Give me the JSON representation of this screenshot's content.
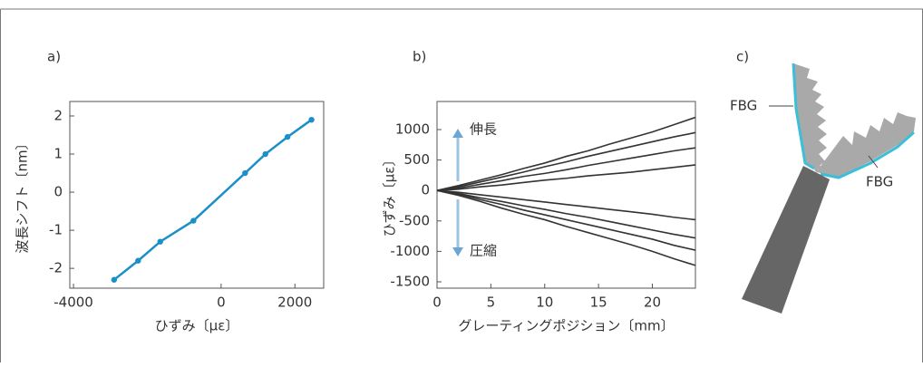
{
  "chart_data": [
    {
      "type": "scatter",
      "title": "a)",
      "xlabel": "ひずみ〔με〕",
      "ylabel": "波長シフト〔nm〕",
      "x": [
        -2900,
        -2250,
        -1650,
        -750,
        650,
        1200,
        1800,
        2450
      ],
      "series": [
        {
          "color": "#1a8fc9",
          "values": [
            -2.3,
            -1.8,
            -1.3,
            -0.75,
            0.5,
            1.0,
            1.45,
            1.9
          ]
        }
      ],
      "xlim": [
        -4100,
        2780
      ],
      "ylim": [
        -2.52,
        2.38
      ],
      "xticks": [
        -4000,
        0,
        2000
      ],
      "yticks": [
        -2,
        -1,
        0,
        1,
        2
      ]
    },
    {
      "type": "line",
      "title": "b)",
      "xlabel": "グレーティングポジション〔mm〕",
      "ylabel": "ひずみ〔με〕",
      "annotations": [
        "伸長",
        "圧縮"
      ],
      "x": [
        0,
        2,
        4,
        6,
        8,
        10,
        12,
        14,
        16,
        18,
        20,
        22,
        24
      ],
      "series": [
        {
          "color": "#333333",
          "values": [
            0,
            80,
            170,
            260,
            360,
            450,
            560,
            650,
            760,
            860,
            960,
            1080,
            1200
          ]
        },
        {
          "color": "#333333",
          "values": [
            0,
            60,
            140,
            220,
            300,
            390,
            470,
            560,
            640,
            720,
            800,
            880,
            950
          ]
        },
        {
          "color": "#333333",
          "values": [
            0,
            40,
            100,
            160,
            230,
            280,
            340,
            410,
            470,
            530,
            590,
            650,
            700
          ]
        },
        {
          "color": "#333333",
          "values": [
            0,
            20,
            60,
            90,
            130,
            170,
            200,
            240,
            270,
            300,
            340,
            380,
            420
          ]
        },
        {
          "color": "#333333",
          "values": [
            0,
            -30,
            -70,
            -110,
            -150,
            -190,
            -230,
            -270,
            -310,
            -350,
            -390,
            -440,
            -480
          ]
        },
        {
          "color": "#333333",
          "values": [
            0,
            -50,
            -120,
            -180,
            -250,
            -310,
            -380,
            -440,
            -510,
            -580,
            -650,
            -720,
            -780
          ]
        },
        {
          "color": "#333333",
          "values": [
            0,
            -60,
            -150,
            -230,
            -320,
            -400,
            -480,
            -560,
            -640,
            -720,
            -800,
            -900,
            -980
          ]
        },
        {
          "color": "#333333",
          "values": [
            0,
            -80,
            -180,
            -290,
            -390,
            -480,
            -590,
            -690,
            -790,
            -890,
            -1000,
            -1120,
            -1230
          ]
        }
      ],
      "xlim": [
        0,
        24
      ],
      "ylim": [
        -1604,
        1461
      ],
      "xticks": [
        0,
        5,
        10,
        15,
        20
      ],
      "yticks": [
        -1500,
        -1000,
        -500,
        0,
        500,
        1000
      ]
    }
  ],
  "diagram": {
    "title": "c)",
    "labels": [
      "FBG",
      "FBG"
    ]
  }
}
